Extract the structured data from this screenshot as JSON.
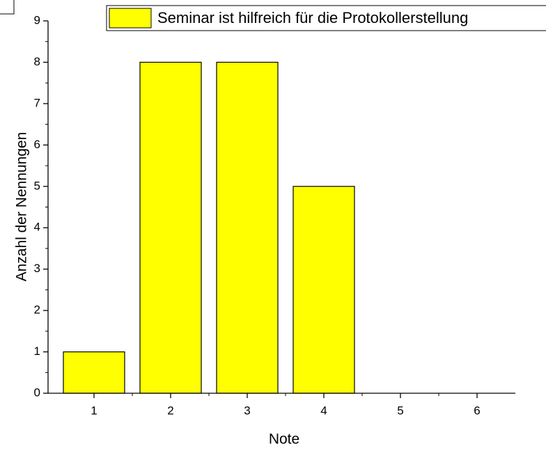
{
  "chart_data": {
    "type": "bar",
    "xlabel": "Note",
    "ylabel": "Anzahl der Nennungen",
    "x": [
      1,
      2,
      3,
      4,
      5,
      6
    ],
    "series": [
      {
        "name": "Seminar ist hilfreich für die Protokollerstellung",
        "color": "#ffff00",
        "values": [
          1,
          8,
          8,
          5,
          0,
          0
        ]
      }
    ],
    "xlim": [
      0.4,
      6.5
    ],
    "xticks": [
      1,
      2,
      3,
      4,
      5,
      6
    ],
    "ylim": [
      0,
      9
    ],
    "yticks": [
      0,
      1,
      2,
      3,
      4,
      5,
      6,
      7,
      8,
      9
    ],
    "bar_width": 0.8,
    "grid": false
  }
}
